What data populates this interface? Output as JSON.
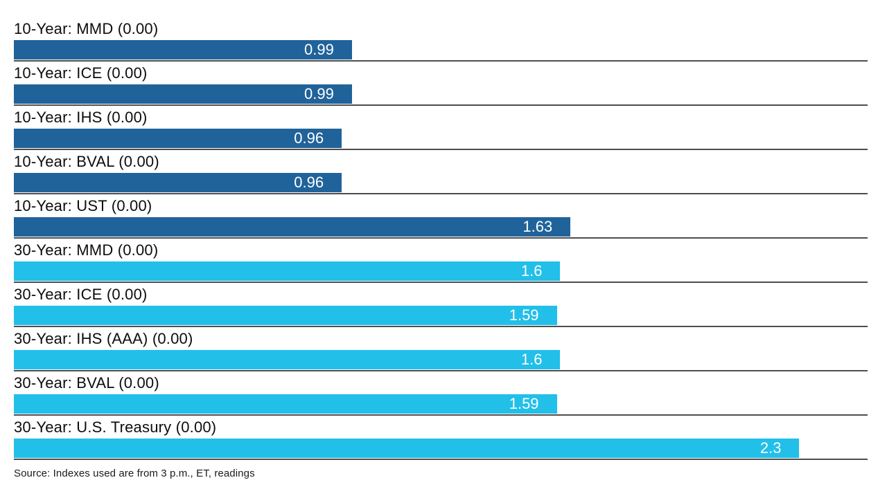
{
  "chart_data": {
    "type": "bar",
    "orientation": "horizontal",
    "title": "",
    "xlabel": "",
    "ylabel": "",
    "xlim": [
      0,
      2.5
    ],
    "grid": false,
    "legend": "none",
    "colors": {
      "ten_year": "#20639a",
      "thirty_year": "#22bfe9"
    },
    "rows": [
      {
        "label": "10-Year: MMD (0.00)",
        "value": 0.99,
        "display": "0.99",
        "group": "ten_year"
      },
      {
        "label": "10-Year: ICE (0.00)",
        "value": 0.99,
        "display": "0.99",
        "group": "ten_year"
      },
      {
        "label": "10-Year: IHS (0.00)",
        "value": 0.96,
        "display": "0.96",
        "group": "ten_year"
      },
      {
        "label": "10-Year: BVAL (0.00)",
        "value": 0.96,
        "display": "0.96",
        "group": "ten_year"
      },
      {
        "label": "10-Year: UST (0.00)",
        "value": 1.63,
        "display": "1.63",
        "group": "ten_year"
      },
      {
        "label": "30-Year: MMD (0.00)",
        "value": 1.6,
        "display": "1.6",
        "group": "thirty_year"
      },
      {
        "label": "30-Year: ICE (0.00)",
        "value": 1.59,
        "display": "1.59",
        "group": "thirty_year"
      },
      {
        "label": "30-Year: IHS (AAA) (0.00)",
        "value": 1.6,
        "display": "1.6",
        "group": "thirty_year"
      },
      {
        "label": "30-Year: BVAL (0.00)",
        "value": 1.59,
        "display": "1.59",
        "group": "thirty_year"
      },
      {
        "label": "30-Year: U.S. Treasury (0.00)",
        "value": 2.3,
        "display": "2.3",
        "group": "thirty_year"
      }
    ]
  },
  "footer": {
    "source_text": "Source: Indexes used are from 3 p.m., ET, readings"
  }
}
